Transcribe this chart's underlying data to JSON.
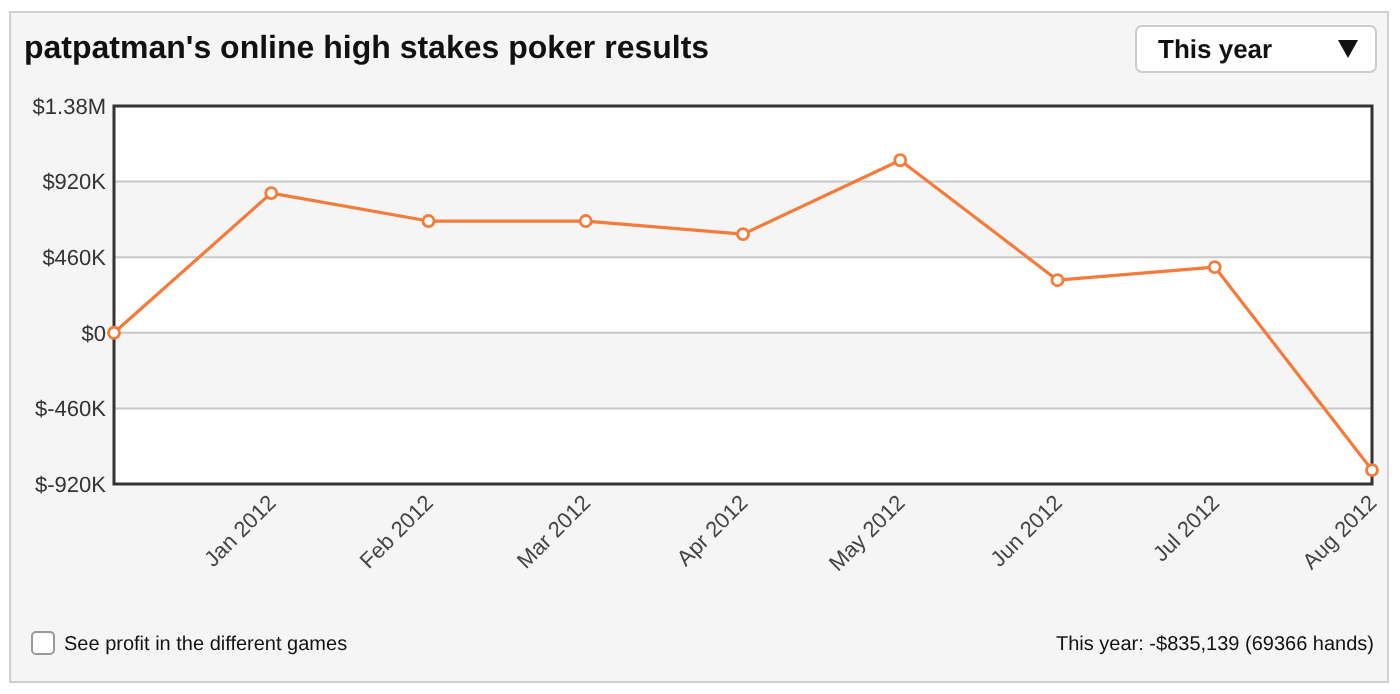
{
  "chart_data": {
    "type": "line",
    "title": "patpatman's online high stakes poker results",
    "categories": [
      null,
      "Jan 2012",
      "Feb 2012",
      "Mar 2012",
      "Apr 2012",
      "May 2012",
      "Jun 2012",
      "Jul 2012",
      "Aug 2012"
    ],
    "series": [
      {
        "color": "#f47b3a",
        "values": [
          0,
          850000,
          680000,
          680000,
          600000,
          1050000,
          320000,
          400000,
          -835139
        ]
      }
    ],
    "ylim": [
      -920000,
      1380000
    ],
    "yticks": [
      {
        "value": -920000,
        "label": "$-920K"
      },
      {
        "value": -460000,
        "label": "$-460K"
      },
      {
        "value": 0,
        "label": "$0"
      },
      {
        "value": 460000,
        "label": "$460K"
      },
      {
        "value": 920000,
        "label": "$920K"
      },
      {
        "value": 1380000,
        "label": "$1.38M"
      }
    ],
    "grid": "y",
    "marker": "circle",
    "line_style": "solid",
    "annotations": [
      "This year",
      "See profit in the different games",
      "This year: -$835,139 (69366 hands)"
    ]
  }
}
